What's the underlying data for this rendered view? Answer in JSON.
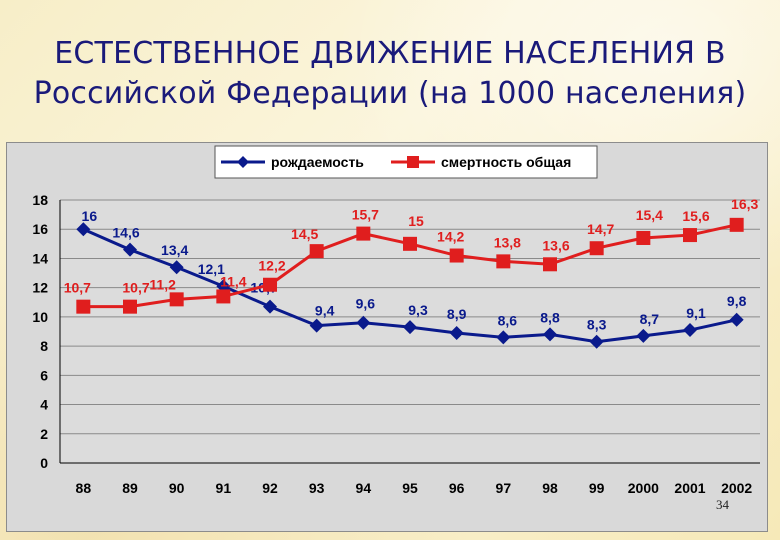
{
  "slide": {
    "title_line1": "ЕСТЕСТВЕННОЕ ДВИЖЕНИЕ НАСЕЛЕНИЯ В",
    "title_line2": "Российской Федерации (на 1000 населения)",
    "slide_number": "34"
  },
  "chart_data": {
    "type": "line",
    "categories": [
      "88",
      "89",
      "90",
      "91",
      "92",
      "93",
      "94",
      "95",
      "96",
      "97",
      "98",
      "99",
      "2000",
      "2001",
      "2002"
    ],
    "series": [
      {
        "name": "рождаемость",
        "color": "#0a1a8c",
        "marker": "diamond",
        "values": [
          16,
          14.6,
          13.4,
          12.1,
          10.7,
          9.4,
          9.6,
          9.3,
          8.9,
          8.6,
          8.8,
          8.3,
          8.7,
          9.1,
          9.8
        ],
        "labels": [
          "16",
          "14,6",
          "13,4",
          "12,1",
          "10,7",
          "9,4",
          "9,6",
          "9,3",
          "8,9",
          "8,6",
          "8,8",
          "8,3",
          "8,7",
          "9,1",
          "9,8"
        ]
      },
      {
        "name": "смертность общая",
        "color": "#e01e1e",
        "marker": "square",
        "values": [
          10.7,
          10.7,
          11.2,
          11.4,
          12.2,
          14.5,
          15.7,
          15,
          14.2,
          13.8,
          13.6,
          14.7,
          15.4,
          15.6,
          16.3
        ],
        "labels": [
          "10,7",
          "10,7",
          "11,2",
          "11,4",
          "12,2",
          "14,5",
          "15,7",
          "15",
          "14,2",
          "13,8",
          "13,6",
          "14,7",
          "15,4",
          "15,6",
          "16,3"
        ]
      }
    ],
    "yticks": [
      "0",
      "2",
      "4",
      "6",
      "8",
      "10",
      "12",
      "14",
      "16",
      "18"
    ],
    "ylim": [
      0,
      18
    ],
    "grid": true,
    "legend_position": "top"
  }
}
